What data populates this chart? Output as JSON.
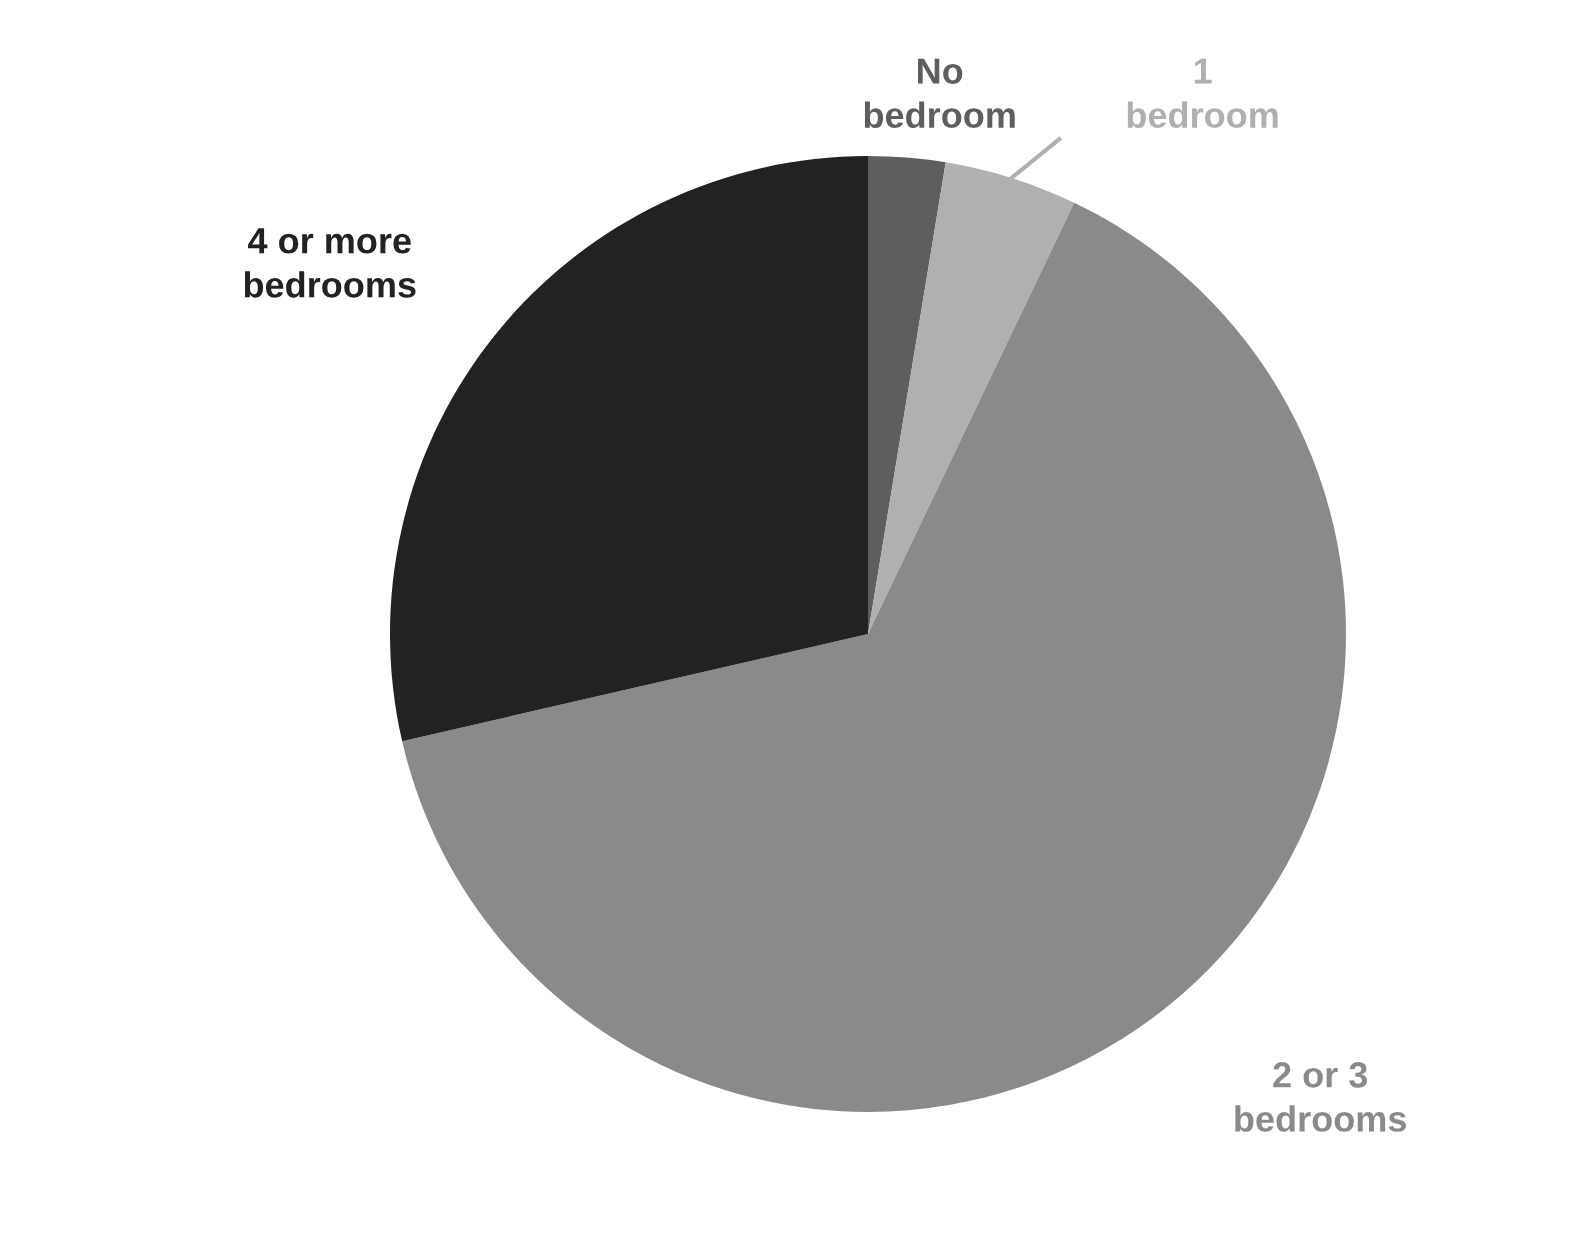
{
  "chart_data": {
    "type": "pie",
    "categories": [
      "No bedroom",
      "1 bedroom",
      "2 or 3 bedrooms",
      "4 or more bedrooms"
    ],
    "values": [
      2.6,
      4.5,
      64.3,
      28.6
    ],
    "colors": [
      "#5e5e5e",
      "#b0b0b0",
      "#8a8a8a",
      "#222222"
    ],
    "legend": false
  }
}
